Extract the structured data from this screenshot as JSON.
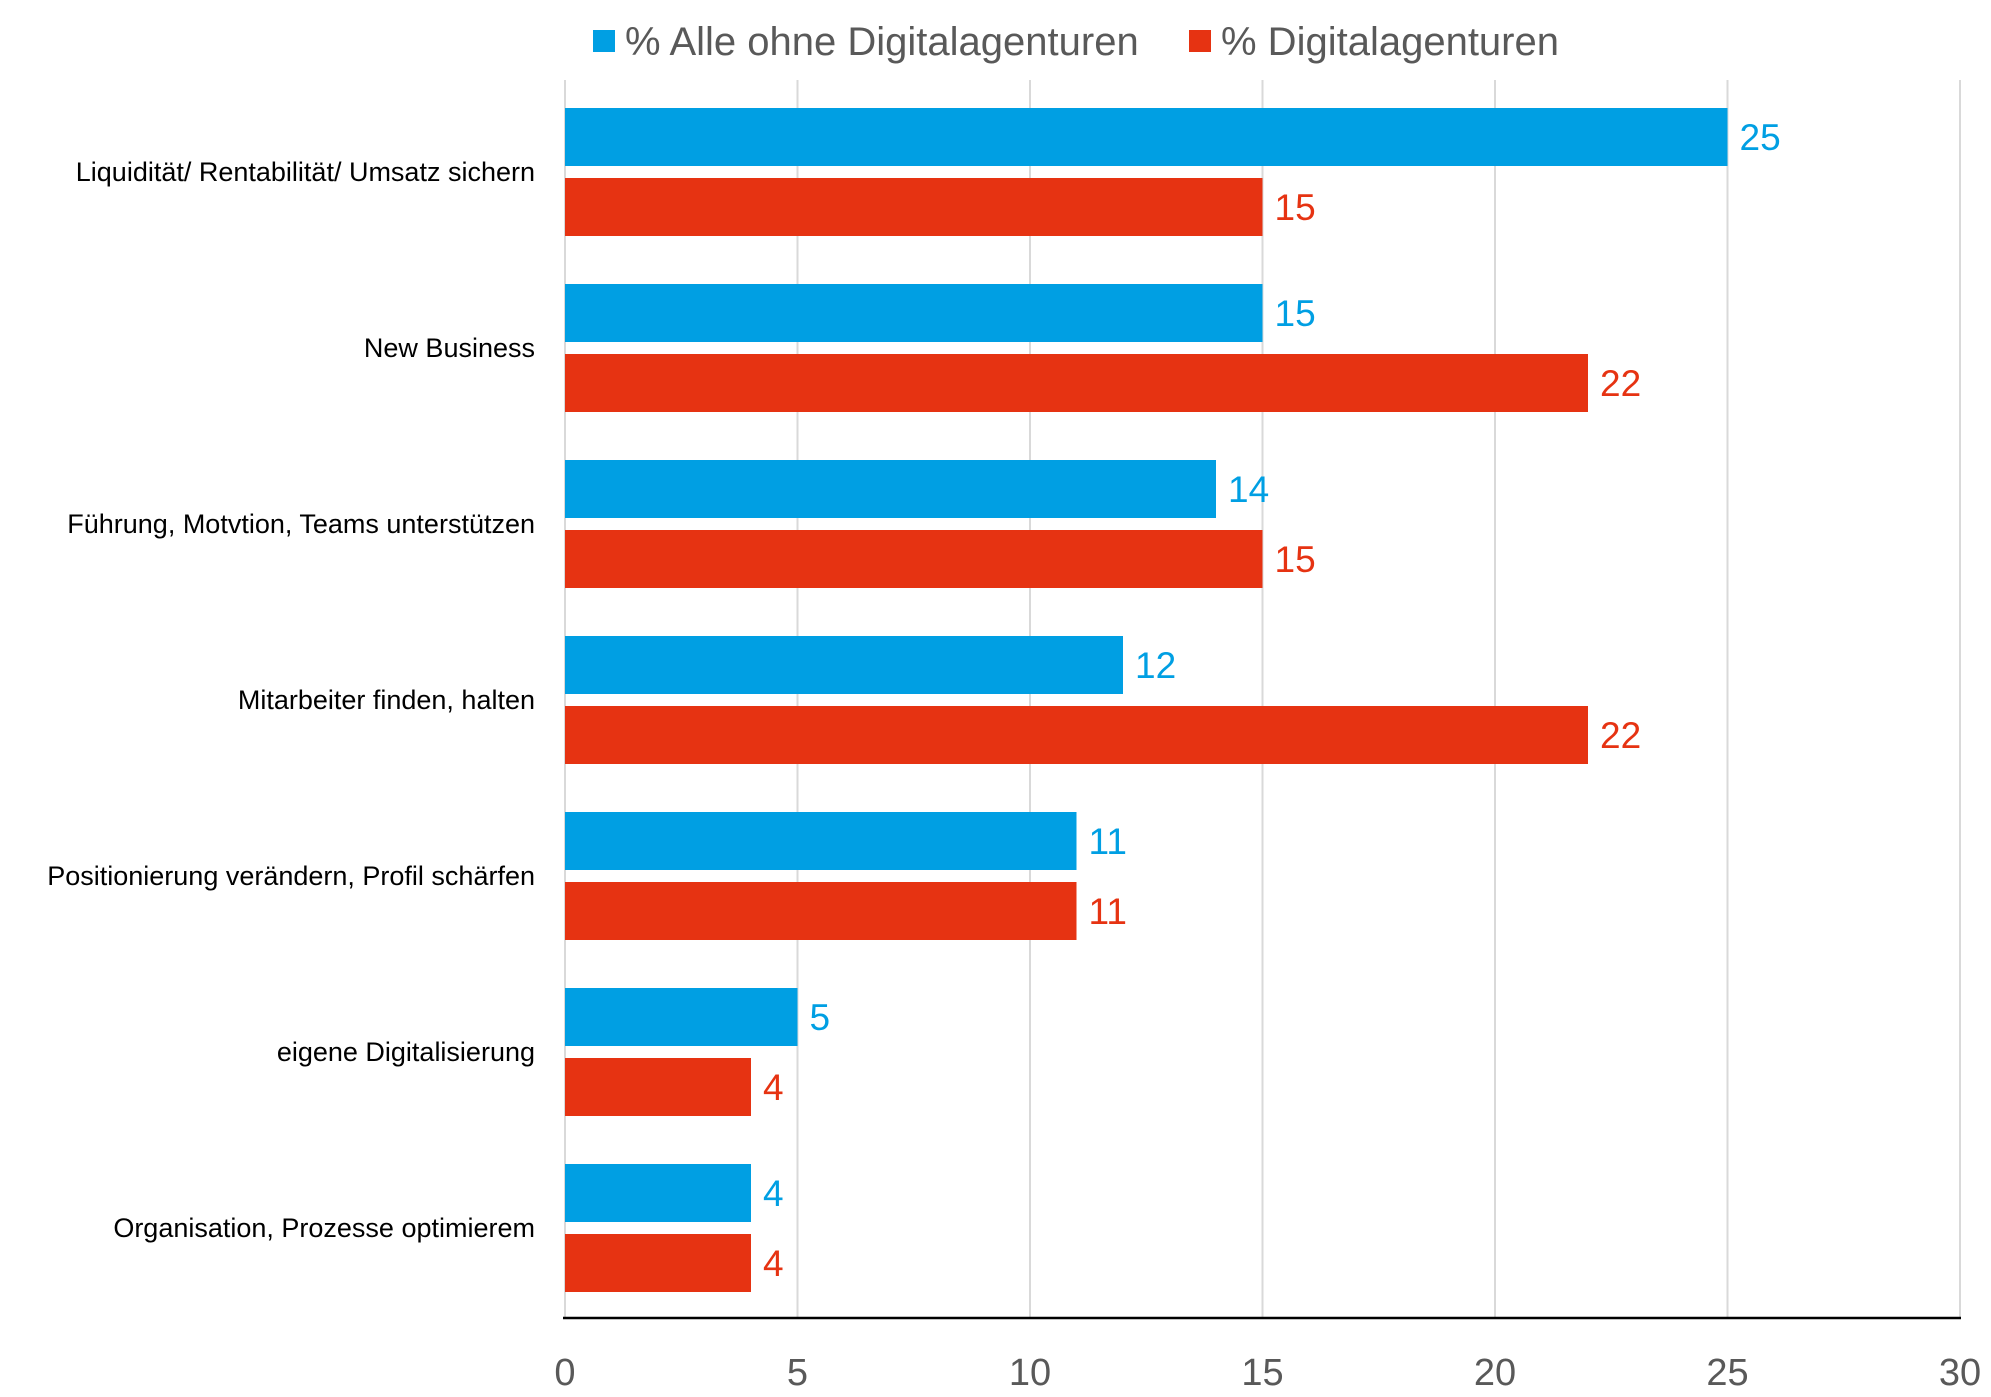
{
  "chart_data": {
    "type": "bar",
    "orientation": "horizontal",
    "categories": [
      "Liquidität/ Rentabilität/ Umsatz sichern",
      "New Business",
      "Führung, Motvtion, Teams unterstützen",
      "Mitarbeiter finden, halten",
      "Positionierung verändern, Profil schärfen",
      "eigene Digitalisierung",
      "Organisation, Prozesse optimierem"
    ],
    "series": [
      {
        "name": "% Alle ohne Digitalagenturen",
        "color": "#009FE3",
        "values": [
          25,
          15,
          14,
          12,
          11,
          5,
          4
        ]
      },
      {
        "name": "% Digitalagenturen",
        "color": "#E63312",
        "values": [
          15,
          22,
          15,
          22,
          11,
          4,
          4
        ]
      }
    ],
    "xlim": [
      0,
      30
    ],
    "xticks": [
      "0",
      "5",
      "10",
      "15",
      "20",
      "25",
      "30"
    ],
    "grid": "vertical",
    "legend_position": "top",
    "data_labels": true
  }
}
